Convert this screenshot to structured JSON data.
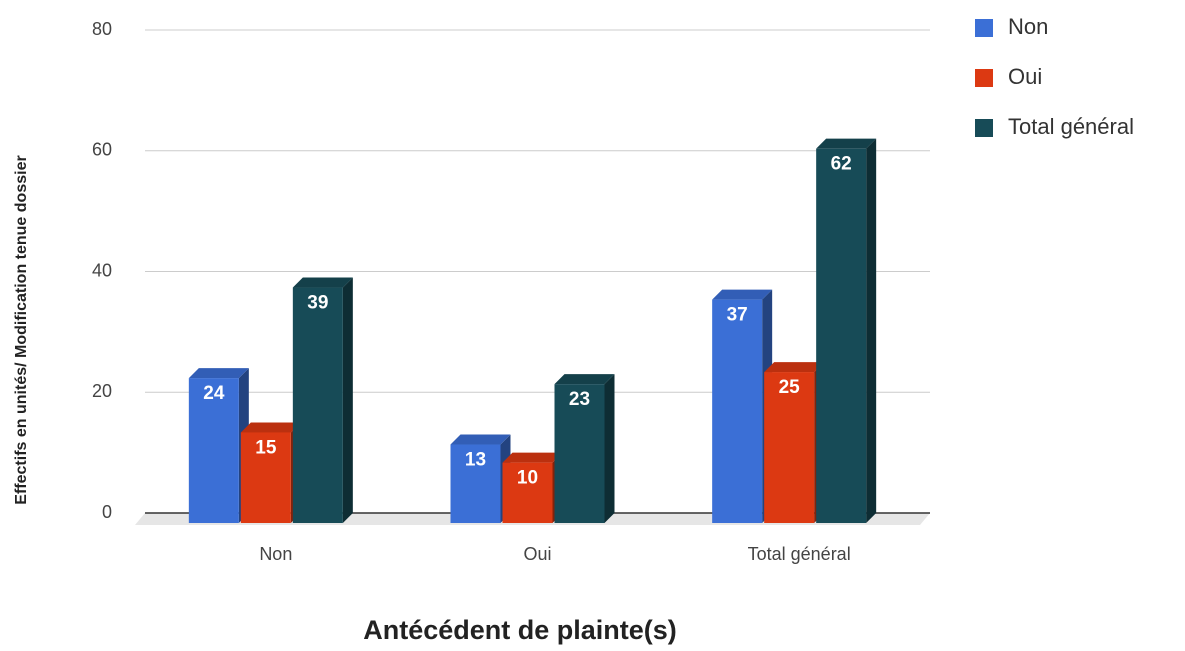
{
  "chart_data": {
    "type": "bar3d",
    "x_label": "Antécédent de plainte(s)",
    "y_label": "Effectifs en unités/ Modification tenue dossier",
    "categories": [
      "Non",
      "Oui",
      "Total général"
    ],
    "series": [
      {
        "name": "Non",
        "color": "#3b6fd6",
        "values": [
          24,
          13,
          37
        ]
      },
      {
        "name": "Oui",
        "color": "#dc3912",
        "values": [
          15,
          10,
          25
        ]
      },
      {
        "name": "Total général",
        "color": "#174b57",
        "values": [
          39,
          23,
          62
        ]
      }
    ],
    "ylim": [
      0,
      80
    ],
    "yticks": [
      0,
      20,
      40,
      60,
      80
    ],
    "grid": true,
    "legend": "right"
  }
}
